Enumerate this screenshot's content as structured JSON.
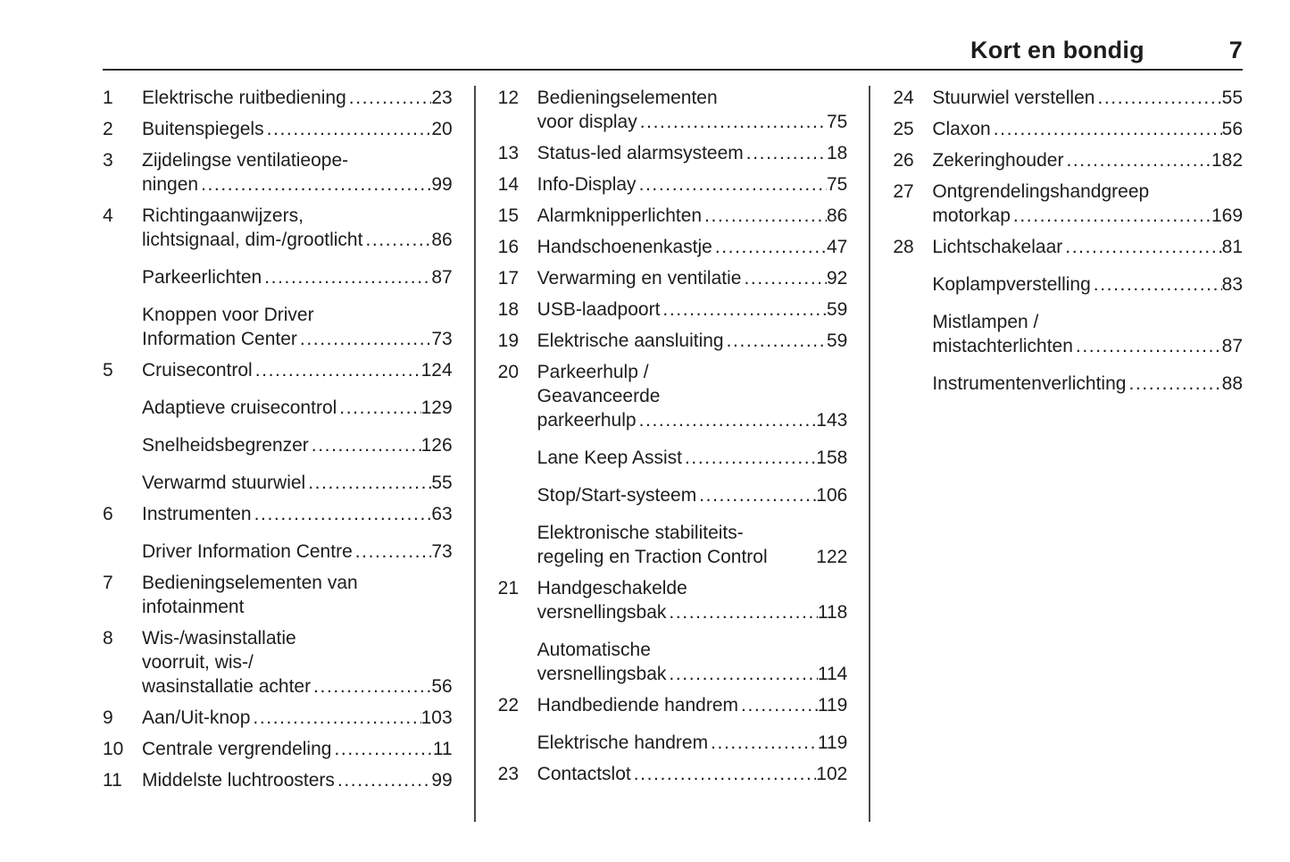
{
  "header": {
    "chapter_title": "Kort en bondig",
    "page_number": "7"
  },
  "colors": {
    "text": "#1d1d1d",
    "rule": "#2b2b2b",
    "column_divider": "#4a4a4a",
    "background": "#ffffff"
  },
  "ui": {
    "leader_dots": "................................................................................"
  },
  "toc": {
    "columns": [
      {
        "entries": [
          {
            "num": "1",
            "lines": [
              "Elektrische ruitbediening"
            ],
            "page": "23"
          },
          {
            "num": "2",
            "lines": [
              "Buitenspiegels"
            ],
            "page": "20"
          },
          {
            "num": "3",
            "lines": [
              "Zijdelingse ventilatieope-",
              "ningen"
            ],
            "page": "99"
          },
          {
            "num": "4",
            "lines": [
              "Richtingaanwijzers,",
              "lichtsignaal, dim-/grootlicht"
            ],
            "page": "86"
          },
          {
            "num": "",
            "lines": [
              "Parkeerlichten"
            ],
            "page": "87"
          },
          {
            "num": "",
            "lines": [
              "Knoppen voor Driver",
              "Information Center"
            ],
            "page": "73"
          },
          {
            "num": "5",
            "lines": [
              "Cruisecontrol"
            ],
            "page": "124"
          },
          {
            "num": "",
            "lines": [
              "Adaptieve cruisecontrol"
            ],
            "page": "129"
          },
          {
            "num": "",
            "lines": [
              "Snelheidsbegrenzer"
            ],
            "page": "126"
          },
          {
            "num": "",
            "lines": [
              "Verwarmd stuurwiel"
            ],
            "page": "55"
          },
          {
            "num": "6",
            "lines": [
              "Instrumenten"
            ],
            "page": "63"
          },
          {
            "num": "",
            "lines": [
              "Driver Information Centre"
            ],
            "page": "73"
          },
          {
            "num": "7",
            "lines": [
              "Bedieningselementen van",
              "infotainment"
            ],
            "page": null
          },
          {
            "num": "8",
            "lines": [
              "Wis-/wasinstallatie",
              "voorruit, wis-/",
              "wasinstallatie achter"
            ],
            "page": "56"
          },
          {
            "num": "9",
            "lines": [
              "Aan/Uit-knop"
            ],
            "page": "103"
          },
          {
            "num": "10",
            "lines": [
              "Centrale vergrendeling"
            ],
            "page": "11"
          },
          {
            "num": "11",
            "lines": [
              "Middelste luchtroosters"
            ],
            "page": "99"
          }
        ]
      },
      {
        "entries": [
          {
            "num": "12",
            "lines": [
              "Bedieningselementen",
              "voor display"
            ],
            "page": "75"
          },
          {
            "num": "13",
            "lines": [
              "Status-led alarmsysteem"
            ],
            "page": "18"
          },
          {
            "num": "14",
            "lines": [
              "Info-Display"
            ],
            "page": "75"
          },
          {
            "num": "15",
            "lines": [
              "Alarmknipperlichten"
            ],
            "page": "86"
          },
          {
            "num": "16",
            "lines": [
              "Handschoenenkastje"
            ],
            "page": "47"
          },
          {
            "num": "17",
            "lines": [
              "Verwarming en ventilatie"
            ],
            "page": "92"
          },
          {
            "num": "18",
            "lines": [
              "USB-laadpoort"
            ],
            "page": "59"
          },
          {
            "num": "19",
            "lines": [
              "Elektrische aansluiting"
            ],
            "page": "59"
          },
          {
            "num": "20",
            "lines": [
              "Parkeerhulp /",
              "Geavanceerde",
              "parkeerhulp"
            ],
            "page": "143"
          },
          {
            "num": "",
            "lines": [
              "Lane Keep Assist"
            ],
            "page": "158"
          },
          {
            "num": "",
            "lines": [
              "Stop/Start-systeem"
            ],
            "page": "106"
          },
          {
            "num": "",
            "lines": [
              "Elektronische stabiliteits-",
              "regeling en Traction Control"
            ],
            "page": "122",
            "no_leader": true
          },
          {
            "num": "21",
            "lines": [
              "Handgeschakelde",
              "versnellingsbak"
            ],
            "page": "118"
          },
          {
            "num": "",
            "lines": [
              "Automatische",
              "versnellingsbak"
            ],
            "page": "114"
          },
          {
            "num": "22",
            "lines": [
              "Handbediende handrem"
            ],
            "page": "119"
          },
          {
            "num": "",
            "lines": [
              "Elektrische handrem"
            ],
            "page": "119"
          },
          {
            "num": "23",
            "lines": [
              "Contactslot"
            ],
            "page": "102"
          }
        ]
      },
      {
        "entries": [
          {
            "num": "24",
            "lines": [
              "Stuurwiel verstellen"
            ],
            "page": "55"
          },
          {
            "num": "25",
            "lines": [
              "Claxon"
            ],
            "page": "56"
          },
          {
            "num": "26",
            "lines": [
              "Zekeringhouder"
            ],
            "page": "182"
          },
          {
            "num": "27",
            "lines": [
              "Ontgrendelingshandgreep",
              "motorkap"
            ],
            "page": "169"
          },
          {
            "num": "28",
            "lines": [
              "Lichtschakelaar"
            ],
            "page": "81"
          },
          {
            "num": "",
            "lines": [
              "Koplampverstelling"
            ],
            "page": "83"
          },
          {
            "num": "",
            "lines": [
              "Mistlampen /",
              "mistachterlichten"
            ],
            "page": "87"
          },
          {
            "num": "",
            "lines": [
              "Instrumentenverlichting"
            ],
            "page": "88"
          }
        ]
      }
    ]
  }
}
